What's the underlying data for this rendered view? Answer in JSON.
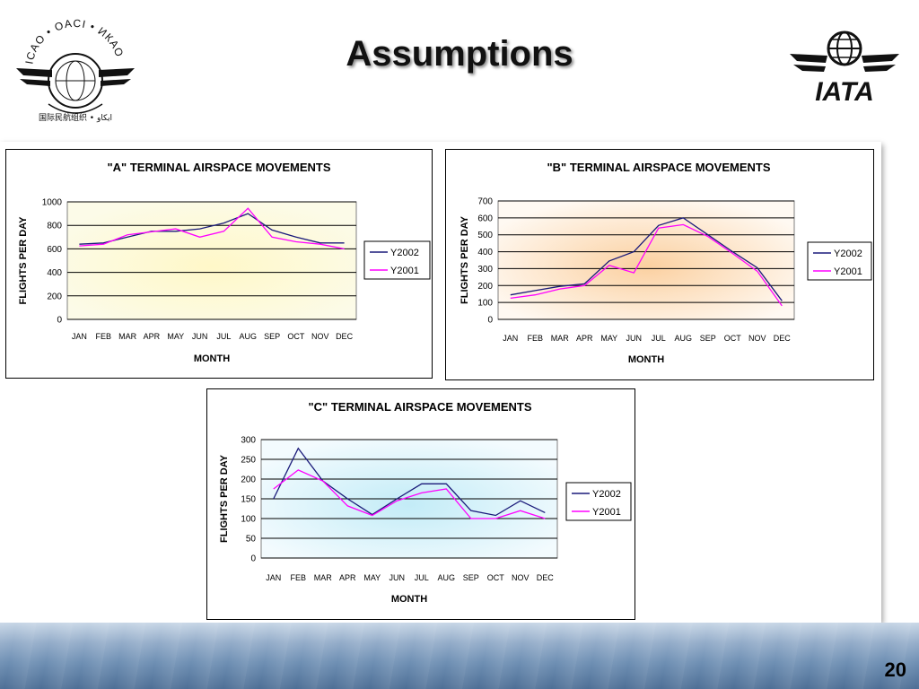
{
  "slide": {
    "title": "Assumptions",
    "page_number": "20"
  },
  "logos": {
    "icao_ring_text": "ICAO • OACI • ИКАО",
    "icao_bottom_text": "国际民航组织 • ايكاو",
    "iata_text": "IATA"
  },
  "colors": {
    "y2002": "#1a1a7a",
    "y2001": "#ff00ff"
  },
  "chart_data": [
    {
      "type": "line",
      "title": "\"A\" TERMINAL AIRSPACE MOVEMENTS",
      "xlabel": "MONTH",
      "ylabel": "FLIGHTS PER DAY",
      "categories": [
        "JAN",
        "FEB",
        "MAR",
        "APR",
        "MAY",
        "JUN",
        "JUL",
        "AUG",
        "SEP",
        "OCT",
        "NOV",
        "DEC"
      ],
      "ylim": [
        0,
        1000
      ],
      "yticks": [
        0,
        200,
        400,
        600,
        800,
        1000
      ],
      "grid": true,
      "legend": "right",
      "background": "yellow-glow",
      "series": [
        {
          "name": "Y2002",
          "values": [
            640,
            650,
            700,
            750,
            750,
            770,
            820,
            900,
            760,
            700,
            650,
            650
          ]
        },
        {
          "name": "Y2001",
          "values": [
            625,
            640,
            720,
            745,
            770,
            700,
            750,
            945,
            700,
            660,
            640,
            600
          ]
        }
      ]
    },
    {
      "type": "line",
      "title": "\"B\" TERMINAL AIRSPACE MOVEMENTS",
      "xlabel": "MONTH",
      "ylabel": "FLIGHTS PER DAY",
      "categories": [
        "JAN",
        "FEB",
        "MAR",
        "APR",
        "MAY",
        "JUN",
        "JUL",
        "AUG",
        "SEP",
        "OCT",
        "NOV",
        "DEC"
      ],
      "ylim": [
        0,
        700
      ],
      "yticks": [
        0,
        100,
        200,
        300,
        400,
        500,
        600,
        700
      ],
      "grid": true,
      "legend": "right",
      "background": "orange-glow",
      "series": [
        {
          "name": "Y2002",
          "values": [
            145,
            170,
            195,
            210,
            345,
            400,
            555,
            600,
            500,
            400,
            305,
            110
          ]
        },
        {
          "name": "Y2001",
          "values": [
            125,
            145,
            180,
            200,
            320,
            275,
            540,
            560,
            490,
            390,
            285,
            80
          ]
        }
      ]
    },
    {
      "type": "line",
      "title": "\"C\" TERMINAL AIRSPACE MOVEMENTS",
      "xlabel": "MONTH",
      "ylabel": "FLIGHTS PER DAY",
      "categories": [
        "JAN",
        "FEB",
        "MAR",
        "APR",
        "MAY",
        "JUN",
        "JUL",
        "AUG",
        "SEP",
        "OCT",
        "NOV",
        "DEC"
      ],
      "ylim": [
        0,
        300
      ],
      "yticks": [
        0,
        50,
        100,
        150,
        200,
        250,
        300
      ],
      "grid": true,
      "legend": "right",
      "background": "cyan-glow",
      "series": [
        {
          "name": "Y2002",
          "values": [
            150,
            278,
            195,
            150,
            110,
            150,
            188,
            188,
            120,
            108,
            145,
            115
          ]
        },
        {
          "name": "Y2001",
          "values": [
            175,
            223,
            195,
            132,
            108,
            145,
            165,
            175,
            100,
            100,
            120,
            100
          ]
        }
      ]
    }
  ]
}
